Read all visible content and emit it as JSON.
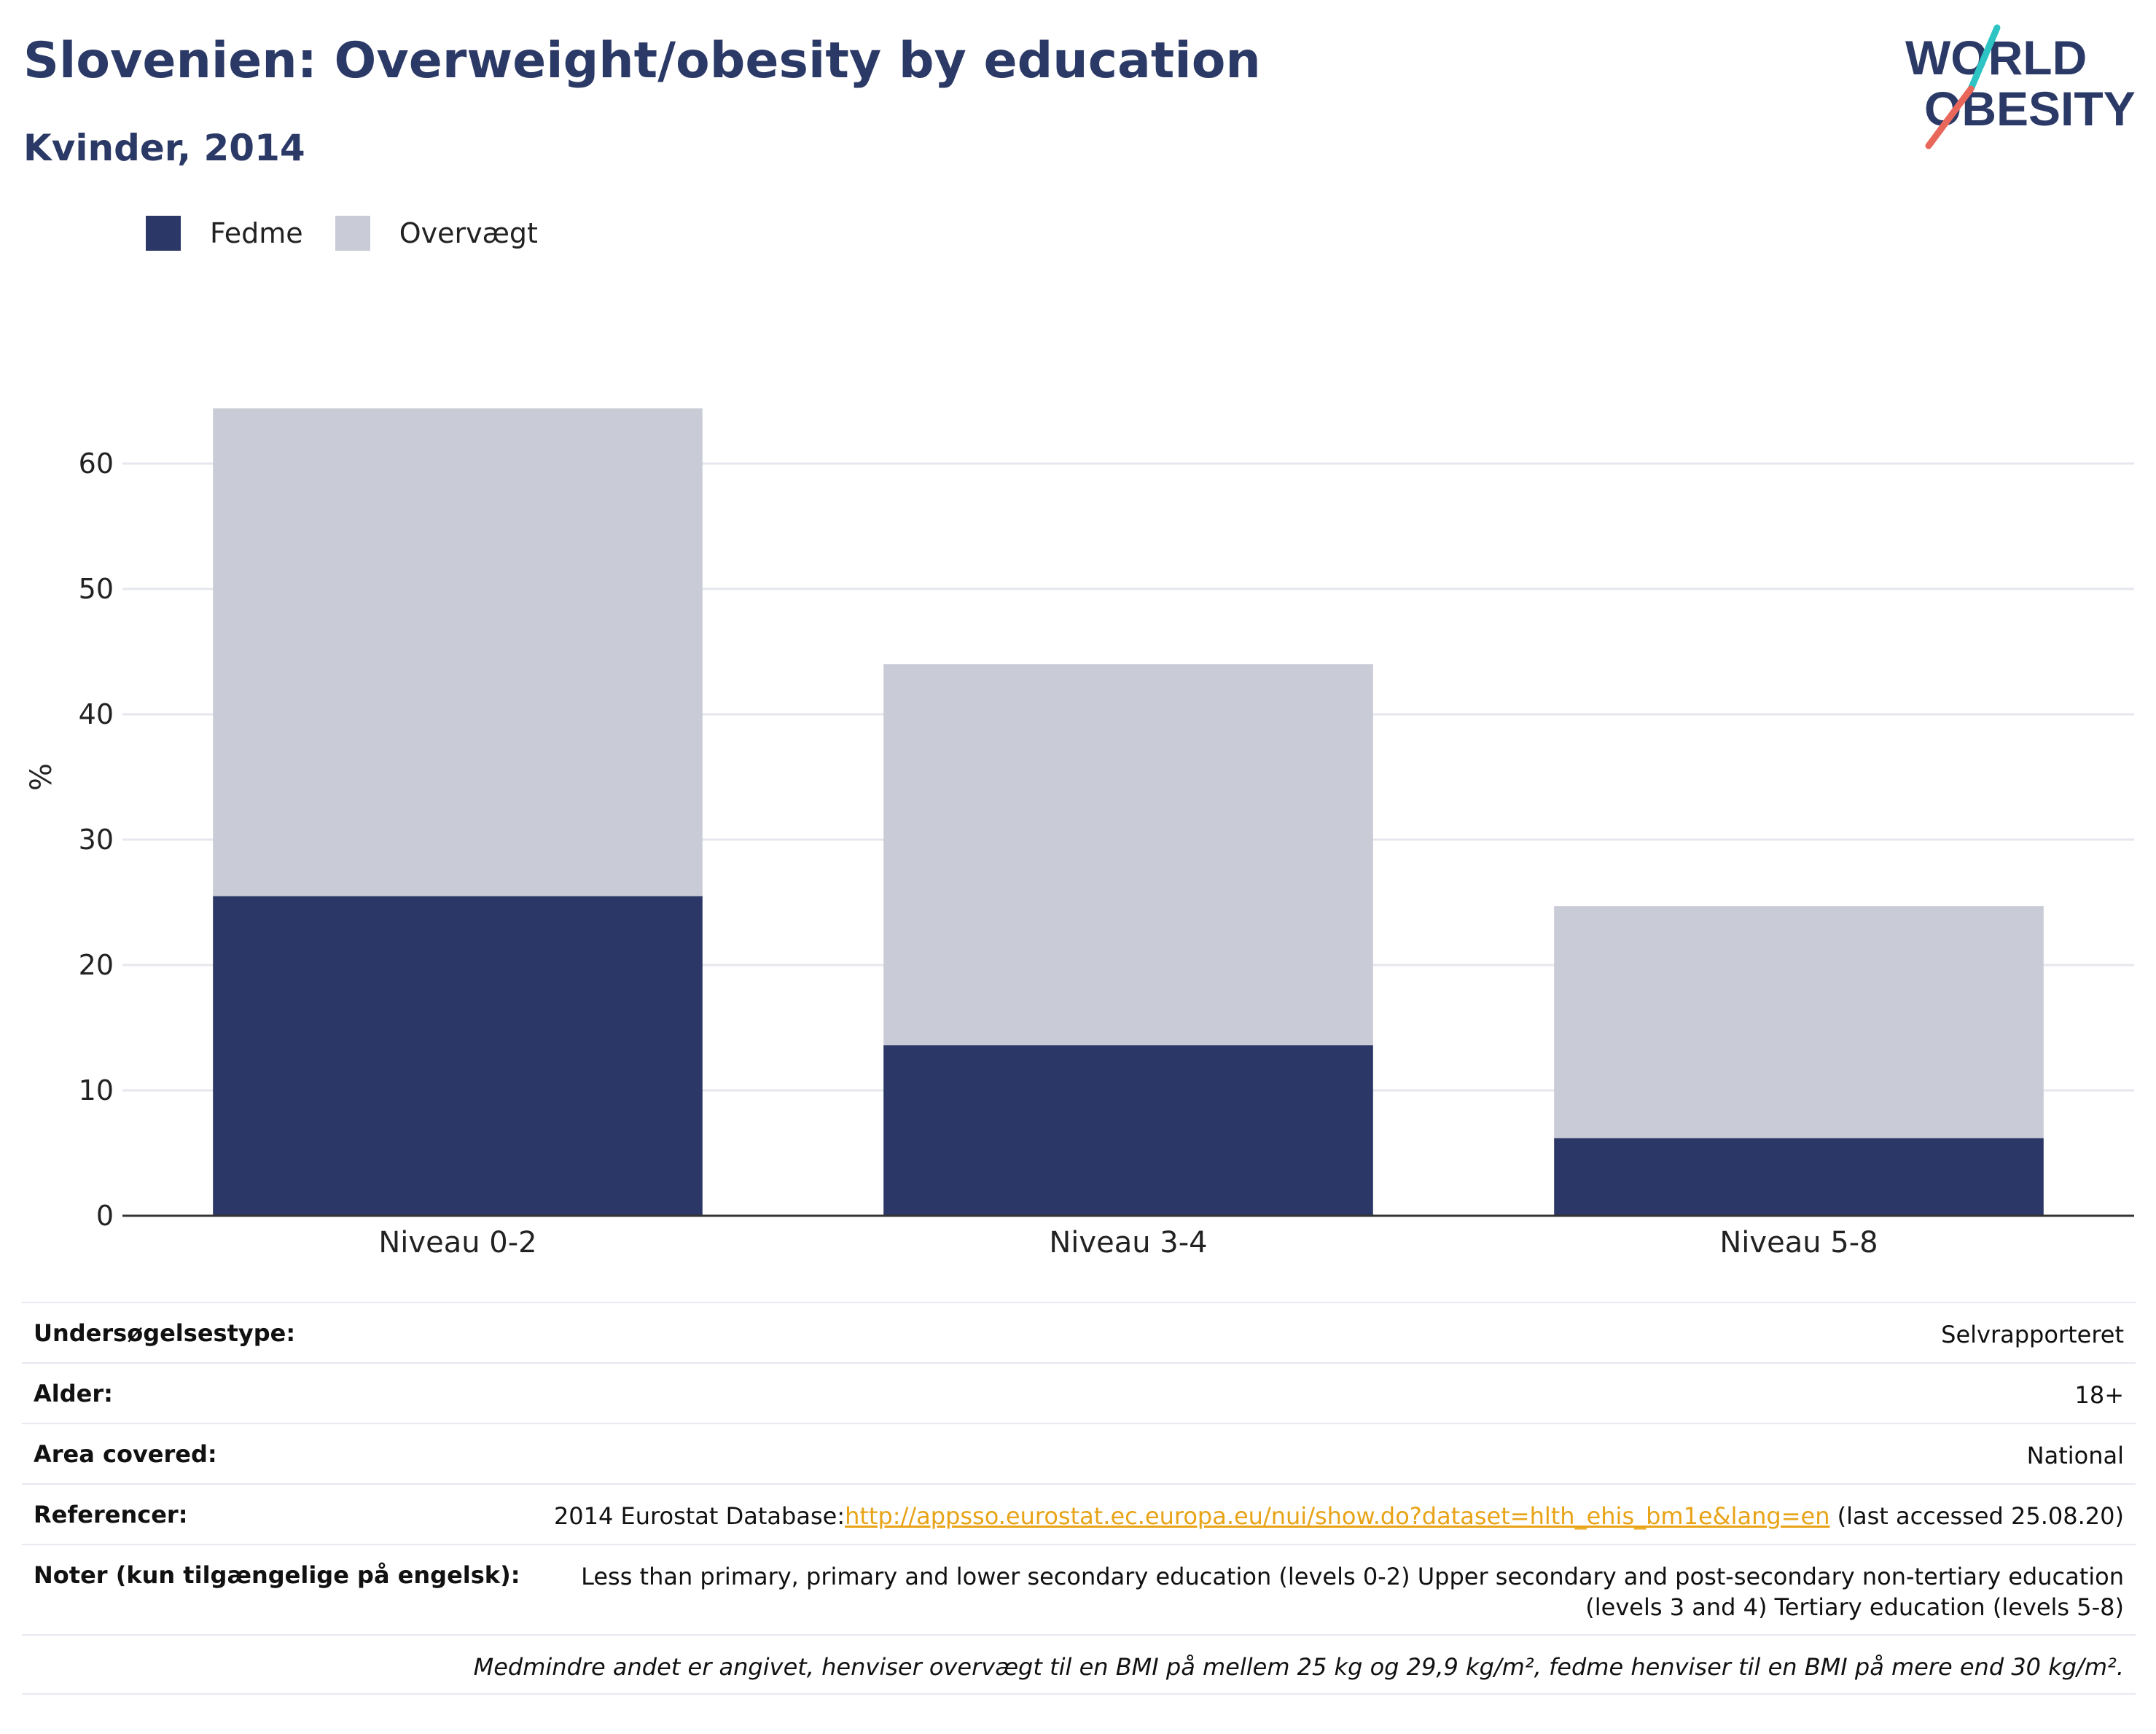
{
  "header": {
    "title": "Slovenien: Overweight/obesity by education",
    "subtitle": "Kvinder, 2014",
    "logo_line1": "WORLD",
    "logo_line2": "OBESITY"
  },
  "colors": {
    "fedme": "#2b3766",
    "overvaegt": "#c9cbd6",
    "title": "#2b3966",
    "link": "#e8a317",
    "logo_teal": "#2ec4c4",
    "logo_red": "#e8675a"
  },
  "legend": [
    {
      "label": "Fedme",
      "color": "#2b3766"
    },
    {
      "label": "Overvægt",
      "color": "#c9cbd6"
    }
  ],
  "chart_data": {
    "type": "bar",
    "stacked": true,
    "categories": [
      "Niveau 0-2",
      "Niveau 3-4",
      "Niveau 5-8"
    ],
    "series": [
      {
        "name": "Fedme",
        "values": [
          25.5,
          13.6,
          6.2
        ]
      },
      {
        "name": "Overvægt",
        "values": [
          38.9,
          30.4,
          18.5
        ]
      }
    ],
    "ylabel": "%",
    "ylim": [
      0,
      70
    ],
    "yticks": [
      0,
      10,
      20,
      30,
      40,
      50,
      60
    ],
    "grid": true,
    "legend_position": "top-left"
  },
  "info": {
    "rows": [
      {
        "label": "Undersøgelsestype:",
        "value": "Selvrapporteret"
      },
      {
        "label": "Alder:",
        "value": "18+"
      },
      {
        "label": "Area covered:",
        "value": "National"
      }
    ],
    "references": {
      "label": "Referencer:",
      "prefix": "2014 Eurostat Database:",
      "link": "http://appsso.eurostat.ec.europa.eu/nui/show.do?dataset=hlth_ehis_bm1e&lang=en",
      "suffix": " (last accessed 25.08.20)"
    },
    "notes": {
      "label": "Noter (kun tilgængelige på engelsk):",
      "line1": "Less than primary, primary and lower secondary education (levels 0-2) Upper secondary and post-secondary non-tertiary education",
      "line2": "(levels 3 and 4) Tertiary education (levels 5-8)"
    },
    "footnote": "Medmindre andet er angivet, henviser overvægt til en BMI på mellem 25 kg og 29,9 kg/m², fedme henviser til en BMI på mere end 30 kg/m²."
  }
}
